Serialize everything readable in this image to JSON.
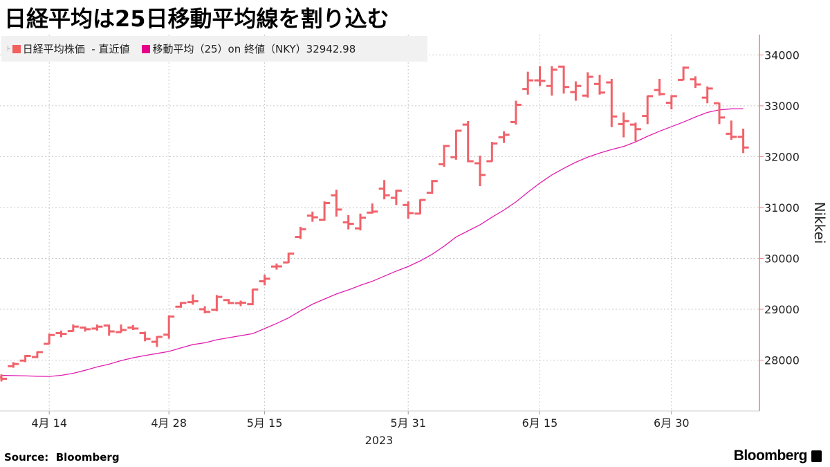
{
  "title": "日経平均は25日移動平均線を割り込む",
  "legend": [
    {
      "label": "日経平均株価  - 直近値",
      "color": "#f25f5c"
    },
    {
      "label": "移動平均（25）on 終値（NKY）32942.98",
      "color": "#e6008a"
    }
  ],
  "source": "Source:  Bloomberg",
  "logo": "Bloomberg",
  "chart_data": {
    "type": "ohlc",
    "title": "",
    "ylabel": "Nikkei",
    "xlabel": "2023",
    "ylim": [
      27000,
      34400
    ],
    "yticks": [
      28000,
      29000,
      30000,
      31000,
      32000,
      33000,
      34000
    ],
    "xticks": [
      {
        "date": "4/14",
        "label": "4月  14"
      },
      {
        "date": "4/28",
        "label": "4月  28"
      },
      {
        "date": "5/15",
        "label": "5月  15"
      },
      {
        "date": "5/31",
        "label": "5月  31"
      },
      {
        "date": "6/15",
        "label": "6月  15"
      },
      {
        "date": "6/30",
        "label": "6月  30"
      }
    ],
    "year_label": "2023",
    "grid": true,
    "legend_position": "top-left",
    "colors": {
      "bars": "#f0626a",
      "moving_average": "#e01fae",
      "axis": "#f07a7a",
      "grid": "#c8c8c8"
    },
    "dates": [
      "4/10",
      "4/11",
      "4/12",
      "4/13",
      "4/14",
      "4/17",
      "4/18",
      "4/19",
      "4/20",
      "4/21",
      "4/24",
      "4/25",
      "4/26",
      "4/27",
      "4/28",
      "5/1",
      "5/2",
      "5/8",
      "5/9",
      "5/10",
      "5/11",
      "5/12",
      "5/15",
      "5/16",
      "5/17",
      "5/18",
      "5/19",
      "5/22",
      "5/23",
      "5/24",
      "5/25",
      "5/26",
      "5/29",
      "5/30",
      "5/31",
      "6/1",
      "6/2",
      "6/5",
      "6/6",
      "6/7",
      "6/8",
      "6/9",
      "6/12",
      "6/13",
      "6/14",
      "6/15",
      "6/16",
      "6/19",
      "6/20",
      "6/21",
      "6/22",
      "6/23",
      "6/26",
      "6/27",
      "6/28",
      "6/29",
      "6/30",
      "7/3",
      "7/4",
      "7/5",
      "7/6",
      "7/7",
      "7/10"
    ],
    "ohlc": [
      [
        27660,
        27720,
        27580,
        27633
      ],
      [
        27880,
        27960,
        27850,
        27923
      ],
      [
        27990,
        28100,
        27960,
        28082
      ],
      [
        28060,
        28170,
        28040,
        28157
      ],
      [
        28320,
        28520,
        28310,
        28493
      ],
      [
        28530,
        28580,
        28450,
        28515
      ],
      [
        28570,
        28700,
        28560,
        28658
      ],
      [
        28640,
        28660,
        28560,
        28607
      ],
      [
        28620,
        28700,
        28580,
        28657
      ],
      [
        28680,
        28700,
        28480,
        28564
      ],
      [
        28550,
        28700,
        28540,
        28593
      ],
      [
        28640,
        28690,
        28590,
        28620
      ],
      [
        28530,
        28560,
        28370,
        28417
      ],
      [
        28360,
        28470,
        28260,
        28457
      ],
      [
        28500,
        28880,
        28420,
        28856
      ],
      [
        29050,
        29140,
        29030,
        29124
      ],
      [
        29140,
        29290,
        29090,
        29158
      ],
      [
        29000,
        29060,
        28920,
        28949
      ],
      [
        28990,
        29280,
        28960,
        29243
      ],
      [
        29180,
        29200,
        29100,
        29122
      ],
      [
        29120,
        29170,
        29060,
        29127
      ],
      [
        29100,
        29400,
        29080,
        29388
      ],
      [
        29550,
        29680,
        29470,
        29600
      ],
      [
        29840,
        29900,
        29780,
        29843
      ],
      [
        29920,
        30110,
        29910,
        30094
      ],
      [
        30420,
        30620,
        30380,
        30574
      ],
      [
        30840,
        30920,
        30720,
        30808
      ],
      [
        30760,
        31120,
        30740,
        31087
      ],
      [
        31240,
        31350,
        30820,
        30960
      ],
      [
        30710,
        30850,
        30570,
        30680
      ],
      [
        30590,
        30880,
        30550,
        30800
      ],
      [
        30900,
        31080,
        30880,
        30920
      ],
      [
        31370,
        31540,
        31160,
        31240
      ],
      [
        31190,
        31350,
        31050,
        31330
      ],
      [
        31050,
        31120,
        30780,
        30890
      ],
      [
        30880,
        31160,
        30870,
        31150
      ],
      [
        31290,
        31540,
        31270,
        31520
      ],
      [
        31850,
        32230,
        31800,
        32210
      ],
      [
        31990,
        32520,
        31940,
        32510
      ],
      [
        32630,
        32700,
        31890,
        31910
      ],
      [
        31870,
        32020,
        31420,
        31640
      ],
      [
        31910,
        32290,
        31900,
        32260
      ],
      [
        32380,
        32500,
        32270,
        32430
      ],
      [
        32680,
        33100,
        32630,
        33020
      ],
      [
        33330,
        33670,
        33220,
        33500
      ],
      [
        33500,
        33780,
        33390,
        33490
      ],
      [
        33390,
        33780,
        33200,
        33710
      ],
      [
        33770,
        33790,
        33240,
        33370
      ],
      [
        33270,
        33480,
        33100,
        33390
      ],
      [
        33200,
        33660,
        33160,
        33570
      ],
      [
        33430,
        33610,
        33220,
        33260
      ],
      [
        33460,
        33530,
        32580,
        32790
      ],
      [
        32640,
        32870,
        32380,
        32700
      ],
      [
        32630,
        32670,
        32300,
        32540
      ],
      [
        32800,
        33200,
        32640,
        33190
      ],
      [
        33310,
        33530,
        33200,
        33230
      ],
      [
        33060,
        33210,
        32930,
        33190
      ],
      [
        33510,
        33770,
        33500,
        33750
      ],
      [
        33520,
        33580,
        33350,
        33420
      ],
      [
        33160,
        33380,
        33050,
        33340
      ],
      [
        33050,
        33060,
        32640,
        32770
      ],
      [
        32450,
        32710,
        32330,
        32390
      ],
      [
        32390,
        32550,
        32070,
        32180
      ]
    ],
    "moving_average_25": [
      27700,
      27695,
      27690,
      27683,
      27678,
      27700,
      27740,
      27800,
      27865,
      27920,
      27990,
      28045,
      28090,
      28130,
      28170,
      28240,
      28305,
      28340,
      28400,
      28440,
      28480,
      28520,
      28620,
      28720,
      28830,
      28970,
      29100,
      29200,
      29300,
      29380,
      29470,
      29550,
      29650,
      29750,
      29840,
      29950,
      30080,
      30240,
      30420,
      30540,
      30660,
      30810,
      30950,
      31110,
      31300,
      31480,
      31640,
      31770,
      31890,
      31990,
      32070,
      32140,
      32200,
      32290,
      32400,
      32500,
      32590,
      32680,
      32780,
      32870,
      32920,
      32940,
      32943
    ]
  }
}
